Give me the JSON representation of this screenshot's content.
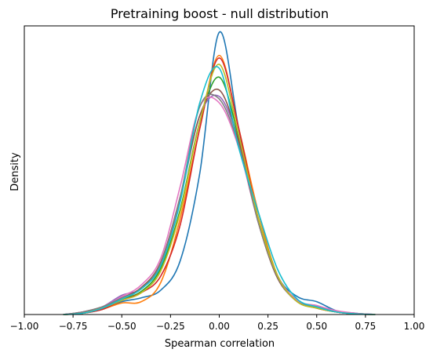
{
  "chart_data": {
    "type": "line",
    "title": "Pretraining boost - null distribution",
    "xlabel": "Spearman correlation",
    "ylabel": "Density",
    "xlim": [
      -1.0,
      1.0
    ],
    "ylim": [
      0,
      2.25
    ],
    "xticks": [
      -1.0,
      -0.75,
      -0.5,
      -0.25,
      0.0,
      0.25,
      0.5,
      0.75,
      1.0
    ],
    "xtick_labels": [
      "−1.00",
      "−0.75",
      "−0.50",
      "−0.25",
      "0.00",
      "0.25",
      "0.50",
      "0.75",
      "1.00"
    ],
    "yticks_shown": false,
    "grid": false,
    "x": [
      -0.8,
      -0.7,
      -0.6,
      -0.5,
      -0.4,
      -0.3,
      -0.2,
      -0.1,
      0.0,
      0.1,
      0.2,
      0.3,
      0.4,
      0.5,
      0.6,
      0.7,
      0.8
    ],
    "series": [
      {
        "color": "#1f77b4",
        "values": [
          0.0,
          0.01,
          0.04,
          0.1,
          0.13,
          0.19,
          0.42,
          1.1,
          2.2,
          1.45,
          0.75,
          0.3,
          0.14,
          0.1,
          0.03,
          0.01,
          0.0
        ]
      },
      {
        "color": "#ff7f0e",
        "values": [
          0.0,
          0.01,
          0.04,
          0.09,
          0.1,
          0.25,
          0.75,
          1.45,
          2.02,
          1.45,
          0.8,
          0.3,
          0.11,
          0.06,
          0.02,
          0.005,
          0.0
        ]
      },
      {
        "color": "#2ca02c",
        "values": [
          0.0,
          0.01,
          0.05,
          0.12,
          0.18,
          0.36,
          0.82,
          1.5,
          1.85,
          1.38,
          0.75,
          0.3,
          0.1,
          0.05,
          0.02,
          0.005,
          0.0
        ]
      },
      {
        "color": "#d62728",
        "values": [
          0.0,
          0.01,
          0.04,
          0.11,
          0.17,
          0.3,
          0.7,
          1.45,
          2.0,
          1.45,
          0.75,
          0.3,
          0.11,
          0.05,
          0.02,
          0.005,
          0.0
        ]
      },
      {
        "color": "#9467bd",
        "values": [
          0.0,
          0.02,
          0.06,
          0.15,
          0.2,
          0.39,
          0.9,
          1.55,
          1.7,
          1.35,
          0.72,
          0.3,
          0.1,
          0.07,
          0.02,
          0.005,
          0.0
        ]
      },
      {
        "color": "#8c564b",
        "values": [
          0.0,
          0.02,
          0.06,
          0.13,
          0.21,
          0.41,
          0.92,
          1.55,
          1.75,
          1.35,
          0.72,
          0.28,
          0.11,
          0.06,
          0.02,
          0.005,
          0.0
        ]
      },
      {
        "color": "#e377c2",
        "values": [
          0.0,
          0.02,
          0.06,
          0.14,
          0.23,
          0.44,
          1.0,
          1.62,
          1.65,
          1.3,
          0.72,
          0.3,
          0.11,
          0.07,
          0.03,
          0.01,
          0.0
        ]
      },
      {
        "color": "#7f7f7f",
        "values": [
          0.0,
          0.02,
          0.06,
          0.13,
          0.2,
          0.4,
          0.92,
          1.62,
          1.68,
          1.32,
          0.72,
          0.29,
          0.1,
          0.06,
          0.02,
          0.005,
          0.0
        ]
      },
      {
        "color": "#bcbd22",
        "values": [
          0.0,
          0.01,
          0.05,
          0.11,
          0.17,
          0.34,
          0.8,
          1.5,
          1.95,
          1.4,
          0.75,
          0.3,
          0.1,
          0.05,
          0.02,
          0.005,
          0.0
        ]
      },
      {
        "color": "#17becf",
        "values": [
          0.0,
          0.01,
          0.05,
          0.12,
          0.2,
          0.38,
          0.88,
          1.65,
          1.92,
          1.3,
          0.8,
          0.35,
          0.12,
          0.06,
          0.02,
          0.005,
          0.0
        ]
      }
    ]
  }
}
